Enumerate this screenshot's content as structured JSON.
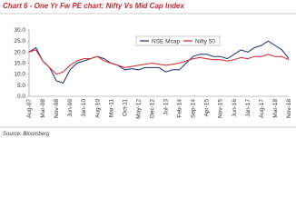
{
  "chart_data": {
    "type": "line",
    "title": "Chart 6 - One Yr Fw PE chart: Nifty Vs Mid Cap Index",
    "source": "Source: Bloomberg",
    "categories": [
      "Aug-07",
      null,
      "Mar-08",
      null,
      "Nov-08",
      null,
      "Jun-09",
      null,
      "Jan-10",
      null,
      "Aug-10",
      null,
      "Mar-11",
      null,
      "Oct-11",
      null,
      "May-12",
      null,
      "Dec-12",
      null,
      "Jul-13",
      null,
      "Feb-14",
      null,
      "Sep-14",
      null,
      "Apr-15",
      null,
      "Nov-15",
      null,
      "Jun-16",
      null,
      "Jan-17",
      null,
      "Aug-17",
      null,
      "Mar-18",
      null,
      "Nov-18"
    ],
    "series": [
      {
        "name": "NSE Mcap",
        "color": "#1f2f6e",
        "values": [
          20,
          22,
          16,
          13,
          7,
          6,
          12,
          15,
          16,
          17,
          18,
          17,
          15,
          14,
          12,
          12.5,
          12,
          13,
          13,
          13,
          11,
          12,
          12,
          15,
          18,
          19,
          19,
          18,
          18,
          17,
          19,
          21,
          20,
          22,
          23,
          25,
          23,
          21,
          17
        ]
      },
      {
        "name": "Nifty 50",
        "color": "#d1262b",
        "values": [
          20,
          21,
          16,
          13,
          10,
          11,
          14,
          16,
          17,
          17,
          18,
          16,
          15,
          14,
          13,
          13.5,
          14,
          14.5,
          15,
          14.5,
          14,
          14.5,
          15,
          16,
          17,
          17.5,
          17,
          16.5,
          16.5,
          16,
          16.5,
          17.5,
          17,
          18,
          18,
          19,
          18,
          18,
          16.5
        ]
      }
    ],
    "ylim": [
      0,
      30
    ],
    "yticks": [
      {
        "value": 0,
        "label": "0.0"
      },
      {
        "value": 5,
        "label": "5.0"
      },
      {
        "value": 10,
        "label": "10.0"
      },
      {
        "value": 15,
        "label": "15.0"
      },
      {
        "value": 20,
        "label": "20.0"
      },
      {
        "value": 25,
        "label": "25.0"
      },
      {
        "value": 30,
        "label": "30.0"
      }
    ],
    "legend": "top"
  }
}
